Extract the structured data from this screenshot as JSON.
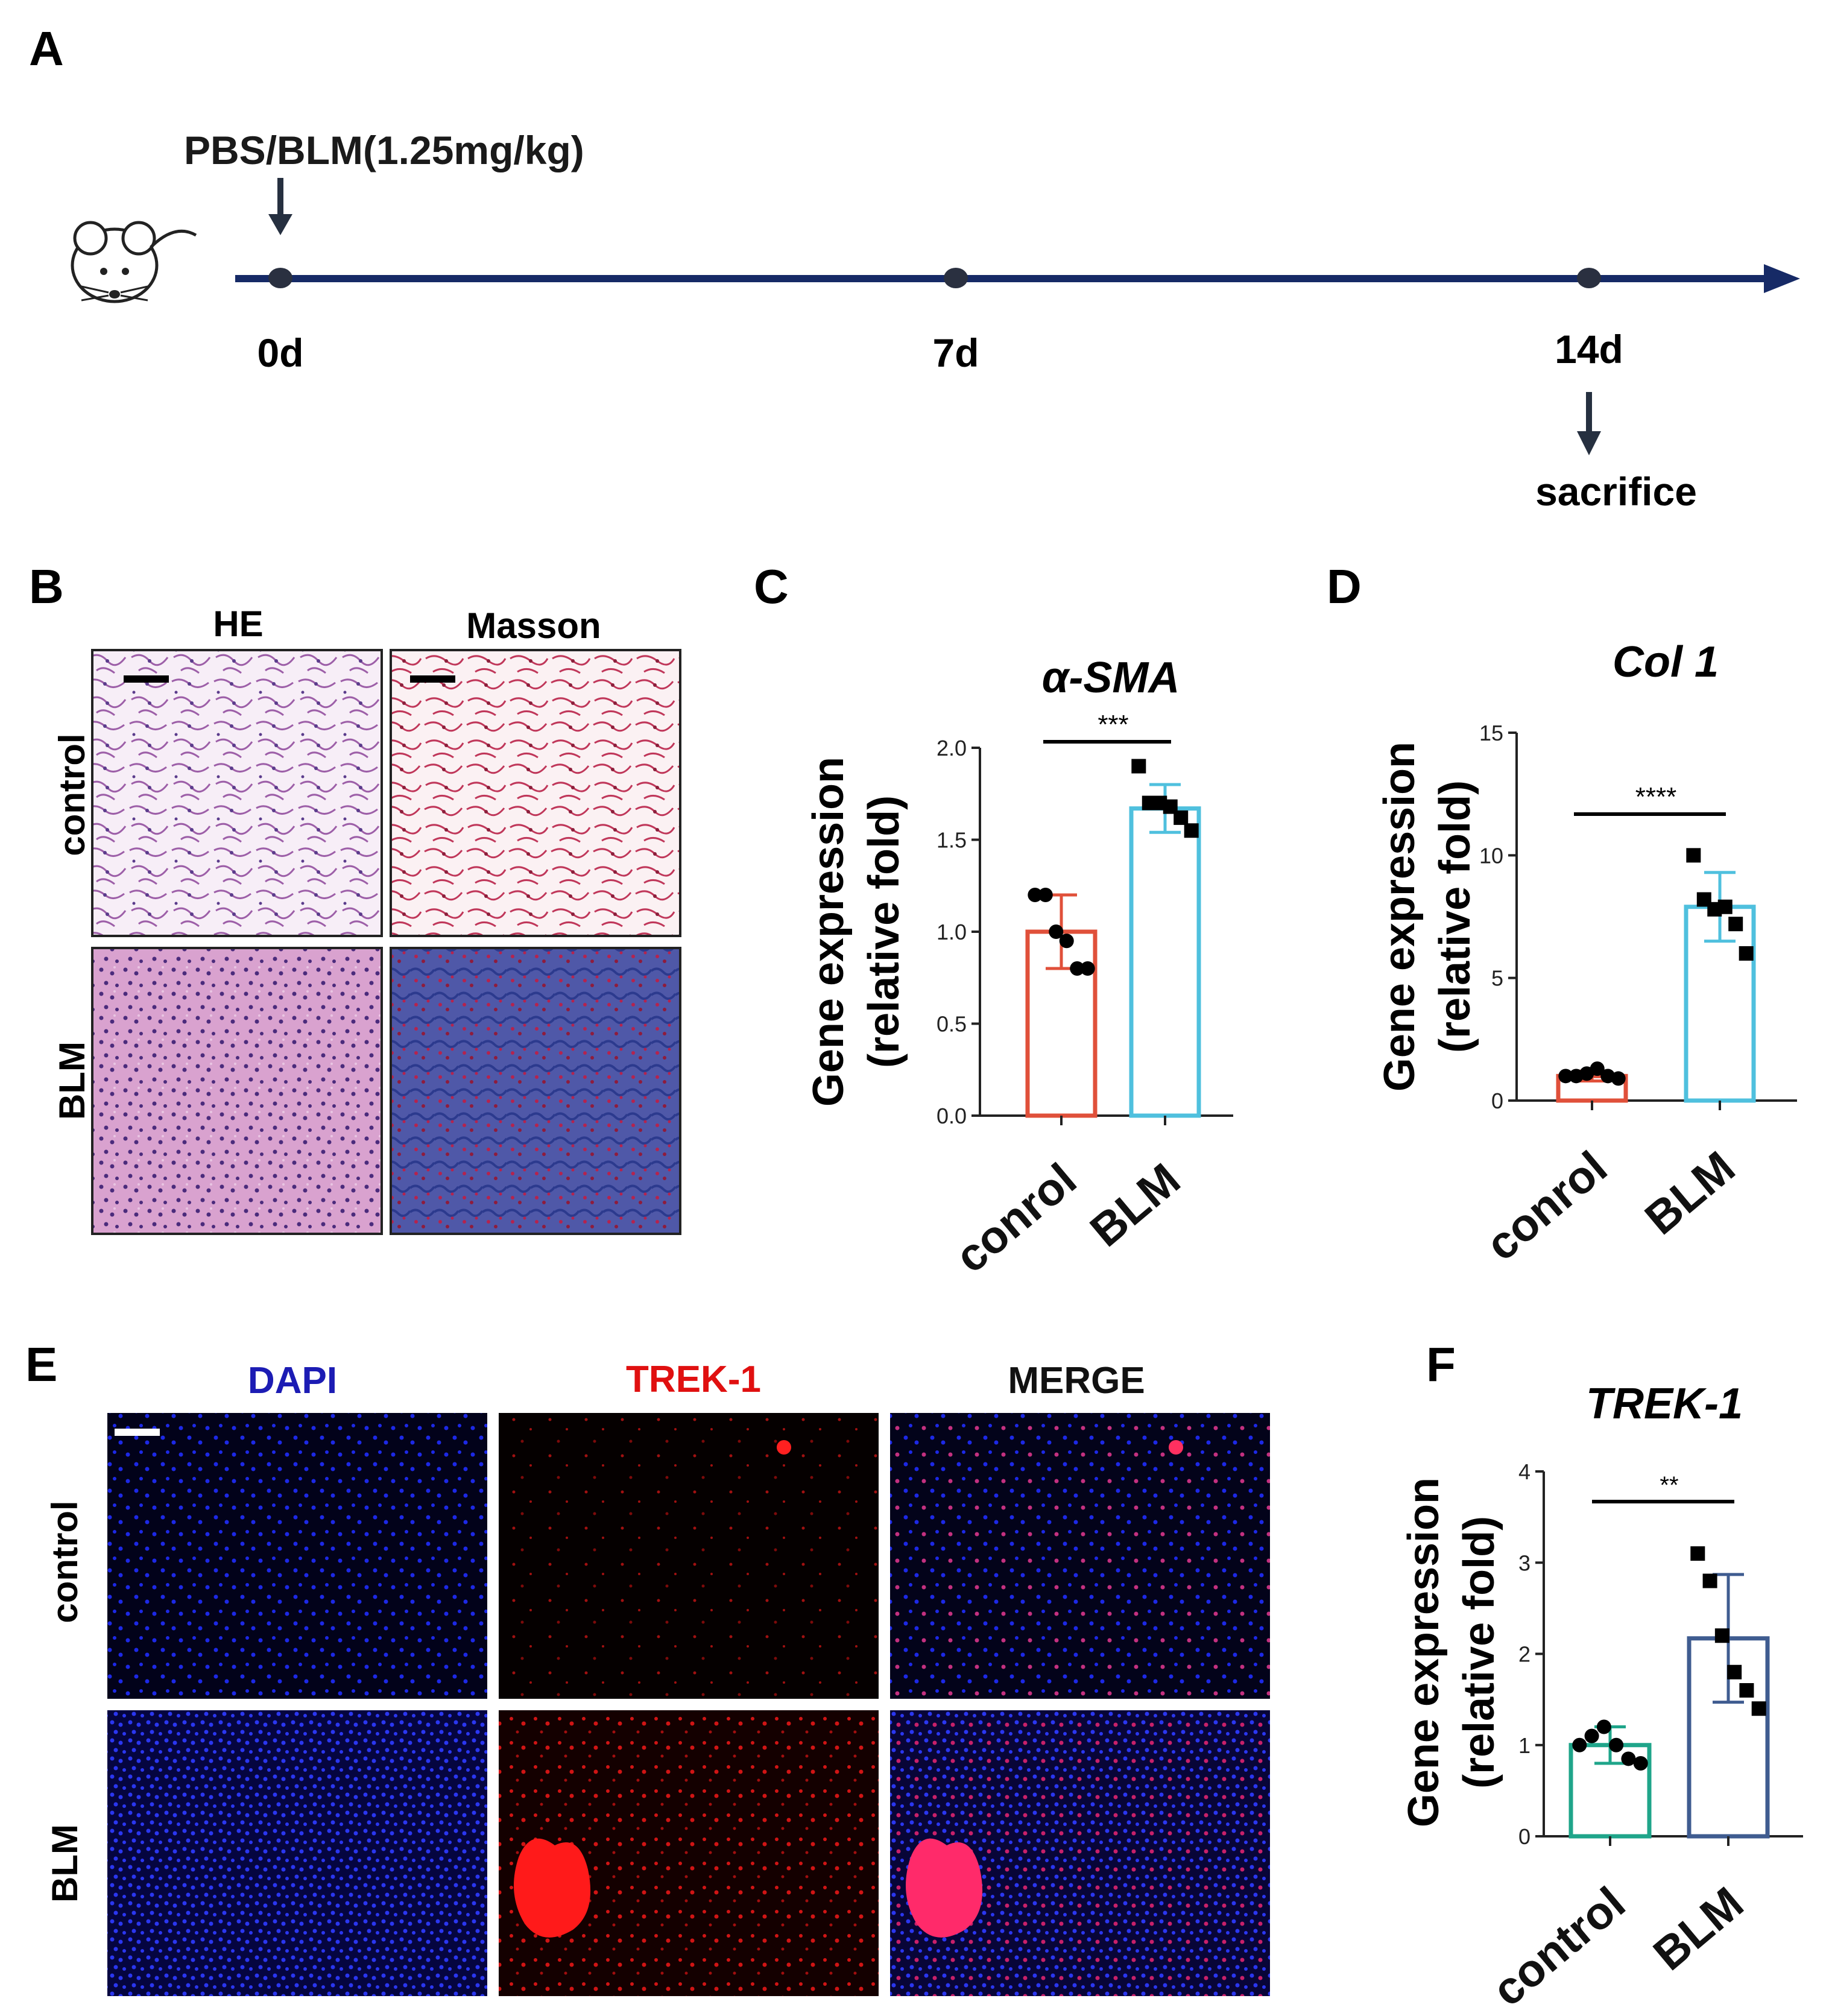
{
  "panels": {
    "A": {
      "letter": "A",
      "treatment": "PBS/BLM(1.25mg/kg)",
      "days": [
        "0d",
        "7d",
        "14d"
      ],
      "endpoint": "sacrifice",
      "icon": "mouse-icon"
    },
    "B": {
      "letter": "B",
      "columns": [
        "HE",
        "Masson"
      ],
      "rows": [
        "control",
        "BLM"
      ],
      "colors": {
        "he_control": "#efe3f0",
        "masson_control": "#f6e6ea",
        "he_blm": "#d9a8d1",
        "masson_blm": "#5b5aa6"
      }
    },
    "C": {
      "letter": "C",
      "title": "α-SMA",
      "ylabel_line1": "Gene expression",
      "ylabel_line2": "(relative fold)",
      "significance": "***"
    },
    "D": {
      "letter": "D",
      "title": "Col 1",
      "ylabel_line1": "Gene expression",
      "ylabel_line2": "(relative fold)",
      "significance": "****"
    },
    "E": {
      "letter": "E",
      "columns": [
        "DAPI",
        "TREK-1",
        "MERGE"
      ],
      "rows": [
        "control",
        "BLM"
      ],
      "column_colors": [
        "#1c1cb4",
        "#e01010",
        "#111111"
      ]
    },
    "F": {
      "letter": "F",
      "title": "TREK-1",
      "ylabel_line1": "Gene expression",
      "ylabel_line2": "(relative fold)",
      "significance": "**"
    }
  },
  "chart_data": [
    {
      "panel": "C",
      "type": "bar",
      "title": "α-SMA",
      "ylabel": "Gene expression (relative fold)",
      "categories": [
        "conrol",
        "BLM"
      ],
      "values": [
        1.0,
        1.67
      ],
      "errors": [
        0.2,
        0.13
      ],
      "points": [
        [
          1.2,
          1.2,
          1.0,
          0.95,
          0.8,
          0.8
        ],
        [
          1.9,
          1.7,
          1.7,
          1.68,
          1.62,
          1.55
        ]
      ],
      "markers": [
        "circle",
        "square"
      ],
      "colors": [
        "#e0503a",
        "#4fc0de"
      ],
      "ylim": [
        0,
        2.0
      ],
      "yticks": [
        "0.0",
        "0.5",
        "1.0",
        "1.5",
        "2.0"
      ],
      "significance": "***",
      "grid": false
    },
    {
      "panel": "D",
      "type": "bar",
      "title": "Col 1",
      "ylabel": "Gene expression (relative fold)",
      "categories": [
        "conrol",
        "BLM"
      ],
      "values": [
        1.0,
        7.9
      ],
      "errors": [
        0.2,
        1.4
      ],
      "points": [
        [
          1.0,
          1.0,
          1.1,
          1.3,
          1.0,
          0.9
        ],
        [
          10.0,
          8.2,
          7.8,
          7.9,
          7.2,
          6.0
        ]
      ],
      "markers": [
        "circle",
        "square"
      ],
      "colors": [
        "#e0503a",
        "#4fc0de"
      ],
      "ylim": [
        0,
        15
      ],
      "yticks": [
        "0",
        "5",
        "10",
        "15"
      ],
      "significance": "****",
      "grid": false
    },
    {
      "panel": "F",
      "type": "bar",
      "title": "TREK-1",
      "ylabel": "Gene expression (relative fold)",
      "categories": [
        "control",
        "BLM"
      ],
      "values": [
        1.0,
        2.17
      ],
      "errors": [
        0.2,
        0.7
      ],
      "points": [
        [
          1.0,
          1.1,
          1.2,
          1.0,
          0.85,
          0.8
        ],
        [
          3.1,
          2.8,
          2.2,
          1.8,
          1.6,
          1.4
        ]
      ],
      "markers": [
        "circle",
        "square"
      ],
      "colors": [
        "#1fa58a",
        "#3f5c90"
      ],
      "ylim": [
        0,
        4
      ],
      "yticks": [
        "0",
        "1",
        "2",
        "3",
        "4"
      ],
      "significance": "**",
      "grid": false
    }
  ]
}
